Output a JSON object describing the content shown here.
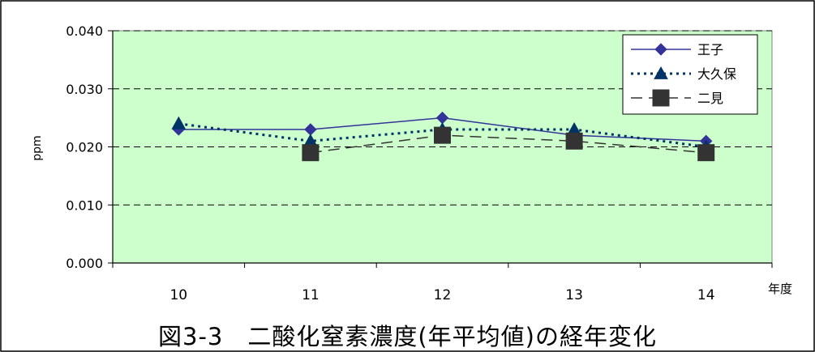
{
  "chart_data": {
    "type": "line",
    "title": "図3-3　二酸化窒素濃度(年平均値)の経年変化",
    "xlabel": "年度",
    "ylabel": "ppm",
    "categories": [
      "10",
      "11",
      "12",
      "13",
      "14"
    ],
    "ylim": [
      0.0,
      0.04
    ],
    "yticks": [
      "0.000",
      "0.010",
      "0.020",
      "0.030",
      "0.040"
    ],
    "grid": true,
    "legend_position": "top-right",
    "plot_background": "#ccffcc",
    "series": [
      {
        "name": "王子",
        "values": [
          0.023,
          0.023,
          0.025,
          0.022,
          0.021
        ],
        "color": "#333399",
        "line": "solid",
        "marker": "diamond"
      },
      {
        "name": "大久保",
        "values": [
          0.024,
          0.021,
          0.023,
          0.023,
          0.02
        ],
        "color": "#003366",
        "line": "dotted",
        "marker": "triangle"
      },
      {
        "name": "二見",
        "values": [
          null,
          0.019,
          0.022,
          0.021,
          0.019
        ],
        "color": "#333333",
        "line": "dashed",
        "marker": "square"
      }
    ]
  }
}
